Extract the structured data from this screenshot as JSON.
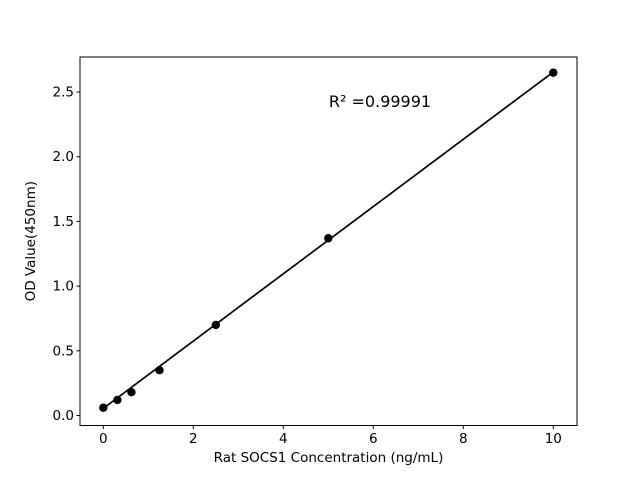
{
  "figure": {
    "background": "#ffffff",
    "foreground": "#000000"
  },
  "chart_data": {
    "type": "scatter",
    "title": "",
    "xlabel": "Rat SOCS1 Concentration (ng/mL)",
    "ylabel": "OD Value(450nm)",
    "r_squared": "R² =0.99991",
    "x": [
      0,
      0.3125,
      0.625,
      1.25,
      2.5,
      5,
      10
    ],
    "y": [
      0.06,
      0.12,
      0.18,
      0.35,
      0.7,
      1.37,
      2.65
    ],
    "trendline": {
      "x1": 0,
      "y1": 0.055,
      "x2": 10,
      "y2": 2.655
    },
    "x_ticks": [
      0,
      2,
      4,
      6,
      8,
      10
    ],
    "x_tick_labels": [
      "0",
      "2",
      "4",
      "6",
      "8",
      "10"
    ],
    "y_ticks": [
      0.0,
      0.5,
      1.0,
      1.5,
      2.0,
      2.5
    ],
    "y_tick_labels": [
      "0.0",
      "0.5",
      "1.0",
      "1.5",
      "2.0",
      "2.5"
    ],
    "xlim": [
      -0.518,
      10.527
    ],
    "ylim": [
      -0.0774,
      2.771
    ],
    "annotation_pos": {
      "x": 6.15,
      "y": 2.43
    },
    "grid": false,
    "legend": null,
    "marker_color": "#000000",
    "line_color": "#000000"
  }
}
